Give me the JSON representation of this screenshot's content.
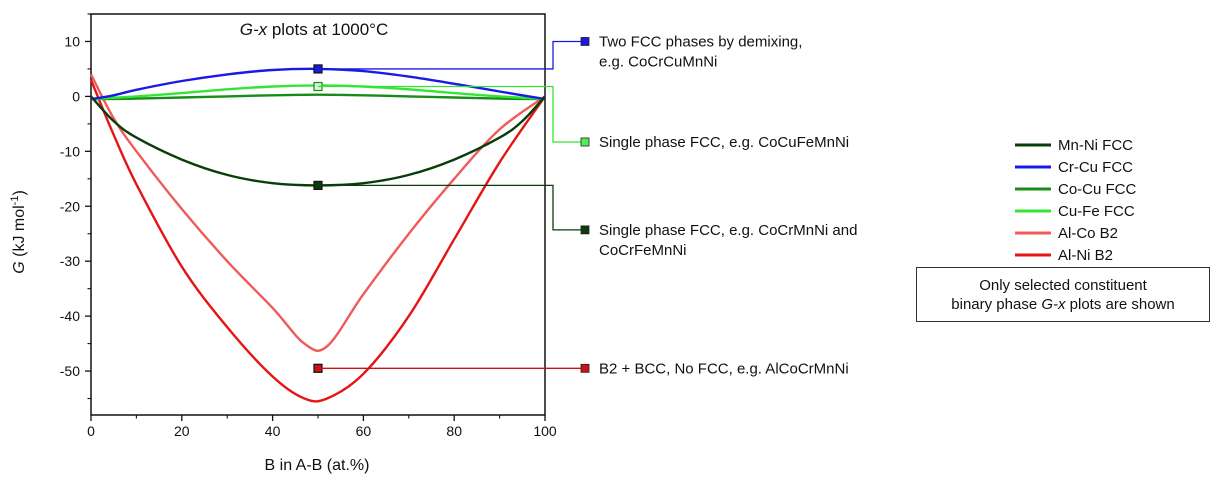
{
  "chart_data": {
    "type": "line",
    "title_italic": "G-x",
    "title_rest": " plots at 1000°C",
    "xlabel": "B in A-B (at.%)",
    "ylabel_italic": "G",
    "ylabel_rest": " (kJ mol",
    "ylabel_sup": "-1",
    "ylabel_close": ")",
    "xlim": [
      0,
      100
    ],
    "ylim": [
      -58,
      15
    ],
    "x_ticks": [
      0,
      20,
      40,
      60,
      80,
      100
    ],
    "x_tick_labels": [
      "0",
      "20",
      "40",
      "60",
      "80",
      "100"
    ],
    "y_ticks": [
      10,
      0,
      -10,
      -20,
      -30,
      -40,
      -50
    ],
    "y_tick_labels": [
      "10",
      "0",
      "-10",
      "-20",
      "-30",
      "-40",
      "-50"
    ],
    "legend_position": "right",
    "series": [
      {
        "name": "Mn-Ni FCC",
        "color": "#0a3d0a",
        "x": [
          0,
          5,
          10,
          20,
          30,
          40,
          50,
          60,
          70,
          80,
          90,
          95,
          100
        ],
        "y": [
          0,
          -4.5,
          -7.5,
          -11.5,
          -14.3,
          -15.8,
          -16.2,
          -15.8,
          -14.3,
          -11.5,
          -7.5,
          -4.5,
          0
        ]
      },
      {
        "name": "Cr-Cu FCC",
        "color": "#1a1ae6",
        "x": [
          0,
          5,
          10,
          20,
          30,
          40,
          50,
          60,
          70,
          80,
          90,
          95,
          100
        ],
        "y": [
          -0.5,
          0.2,
          1.2,
          2.8,
          4.0,
          4.8,
          5.0,
          4.6,
          3.6,
          2.3,
          0.9,
          0.2,
          -0.5
        ]
      },
      {
        "name": "Co-Cu FCC",
        "color": "#178c17",
        "x": [
          0,
          10,
          20,
          30,
          40,
          50,
          60,
          70,
          80,
          90,
          100
        ],
        "y": [
          -0.5,
          -0.4,
          -0.2,
          0.0,
          0.2,
          0.3,
          0.2,
          0.0,
          -0.2,
          -0.4,
          -0.5
        ]
      },
      {
        "name": "Cu-Fe FCC",
        "color": "#33e633",
        "x": [
          0,
          10,
          20,
          30,
          40,
          50,
          60,
          70,
          80,
          90,
          100
        ],
        "y": [
          -0.5,
          0.0,
          0.6,
          1.3,
          1.8,
          2.0,
          1.8,
          1.3,
          0.6,
          0.0,
          -0.5
        ]
      },
      {
        "name": "Al-Co B2",
        "color": "#f05a5a",
        "x": [
          0,
          5,
          10,
          20,
          30,
          40,
          47,
          52,
          60,
          70,
          80,
          90,
          100
        ],
        "y": [
          4,
          -4,
          -10,
          -20.5,
          -30,
          -38.5,
          -45,
          -45.5,
          -36,
          -25,
          -15,
          -6,
          0
        ]
      },
      {
        "name": "Al-Ni B2",
        "color": "#e61414",
        "x": [
          0,
          5,
          10,
          20,
          30,
          40,
          47,
          52,
          60,
          70,
          80,
          90,
          100
        ],
        "y": [
          3,
          -7,
          -16,
          -31,
          -42,
          -51,
          -55,
          -55,
          -50.5,
          -40,
          -26,
          -12,
          0
        ]
      }
    ],
    "markers": [
      {
        "x": 50,
        "y": 5.0,
        "color": "#1a1ae6",
        "filled": true
      },
      {
        "x": 50,
        "y": 1.8,
        "color": "#178c17",
        "filled": false
      },
      {
        "x": 50,
        "y": -16.2,
        "color": "#0a3d0a",
        "filled": true
      },
      {
        "x": 50,
        "y": -49.5,
        "color": "#c81414",
        "filled": true
      }
    ],
    "annotations": [
      {
        "lines": [
          "Two FCC phases by demixing,",
          "e.g. CoCrCuMnNi"
        ],
        "color": "#1a1ae6",
        "marker_fill": "#1a1ae6",
        "from_y": 5.0,
        "to_y": 10.0
      },
      {
        "lines": [
          "Single phase FCC, e.g. CoCuFeMnNi"
        ],
        "color": "#33e633",
        "marker_fill": "#55ee55",
        "from_y": 1.8,
        "to_y": -8.3
      },
      {
        "lines": [
          "Single phase FCC, e.g. CoCrMnNi and",
          "CoCrFeMnNi"
        ],
        "color": "#0a3d0a",
        "marker_fill": "#0a3d0a",
        "from_y": -16.2,
        "to_y": -24.3
      },
      {
        "lines": [
          "B2 + BCC, No FCC, e.g. AlCoCrMnNi"
        ],
        "color": "#c81414",
        "marker_fill": "#c81414",
        "from_y": -49.5,
        "to_y": -49.5
      }
    ],
    "note_line1": "Only selected constituent",
    "note_line2_pre": "binary phase ",
    "note_line2_italic": "G-x",
    "note_line2_post": " plots are shown"
  }
}
